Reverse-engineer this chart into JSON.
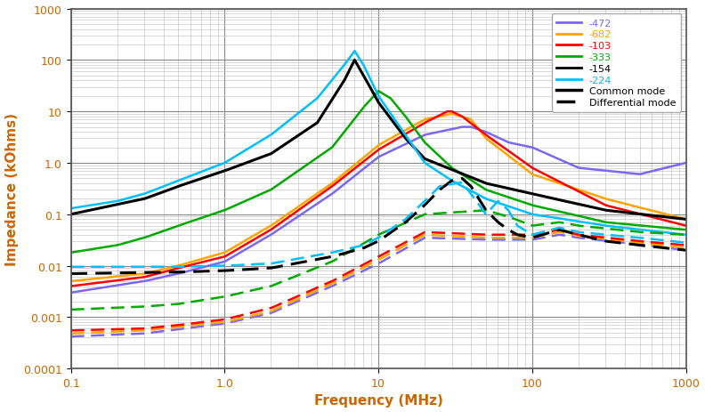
{
  "title": "",
  "xlabel": "Frequency (MHz)",
  "ylabel": "Impedance (kOhms)",
  "xlim": [
    0.1,
    1000
  ],
  "ylim": [
    0.0001,
    1000
  ],
  "legend_labels": [
    "-472",
    "-682",
    "-103",
    "-333",
    "-154",
    "-224"
  ],
  "legend_colors": [
    "#7B68EE",
    "#FFA500",
    "#FF0000",
    "#00AA00",
    "#000000",
    "#00BFFF"
  ],
  "mode_labels": [
    "Common mode",
    "Differential mode"
  ],
  "background_color": "#ffffff",
  "ytick_labels": [
    "0.0001",
    "0.001",
    "0.01",
    "0.1",
    "1.0",
    "10",
    "100",
    "1000"
  ],
  "ytick_values": [
    0.0001,
    0.001,
    0.01,
    0.1,
    1.0,
    10,
    100,
    1000
  ],
  "xtick_labels": [
    "0.1",
    "1.0",
    "10",
    "100",
    "1000"
  ],
  "xtick_values": [
    0.1,
    1.0,
    10,
    100,
    1000
  ]
}
